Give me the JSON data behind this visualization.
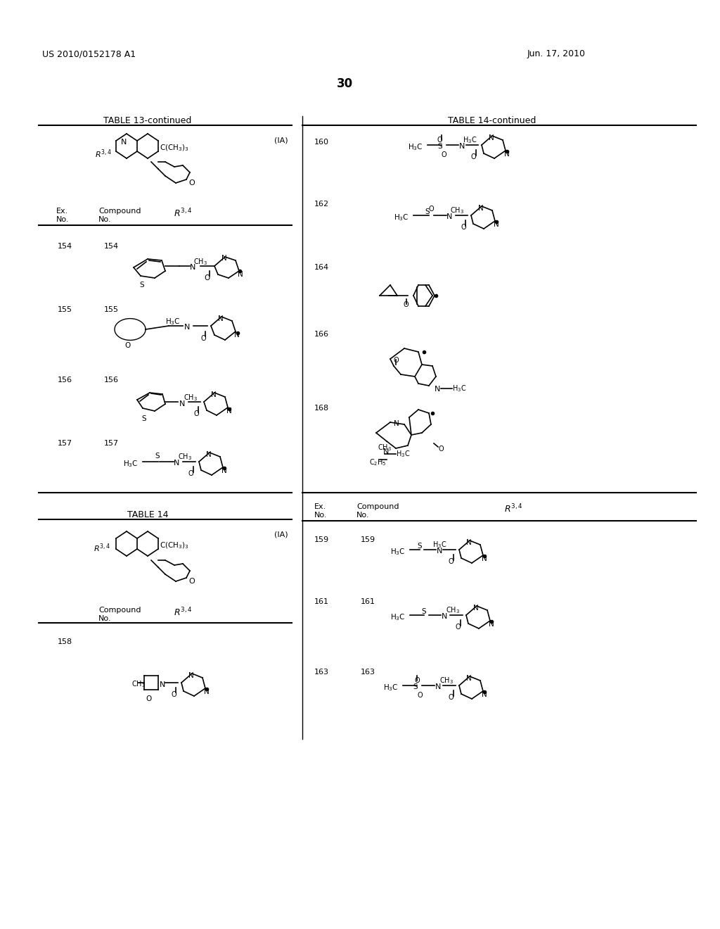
{
  "background_color": "#ffffff",
  "page_number": "30",
  "header_left": "US 2010/0152178 A1",
  "header_right": "Jun. 17, 2010",
  "table13_title": "TABLE 13-continued",
  "table14_title": "TABLE 14-continued",
  "table13_2_title": "TABLE 14",
  "label_IA": "(IA)",
  "text_color": "#000000"
}
